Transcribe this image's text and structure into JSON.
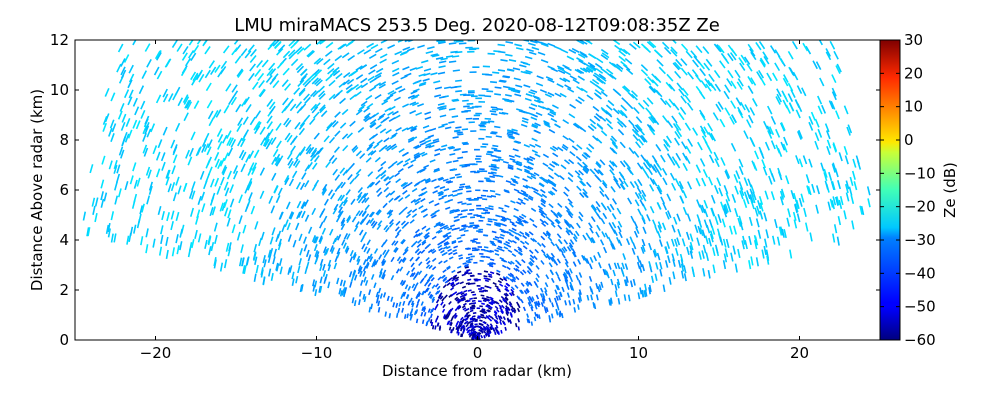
{
  "chart_data": {
    "type": "heatmap",
    "subtype": "radar RHI scan",
    "title": "LMU miraMACS 253.5 Deg. 2020-08-12T09:08:35Z  Ze",
    "xlabel": "Distance from radar (km)",
    "ylabel": "Distance Above radar  (km)",
    "xlim": [
      -25,
      25
    ],
    "ylim": [
      0,
      12
    ],
    "xticks": [
      "−20",
      "−10",
      "0",
      "10",
      "20"
    ],
    "xtick_values": [
      -20,
      -10,
      0,
      10,
      20
    ],
    "yticks": [
      "0",
      "2",
      "4",
      "6",
      "8",
      "10",
      "12"
    ],
    "ytick_values": [
      0,
      2,
      4,
      6,
      8,
      10,
      12
    ],
    "colorbar": {
      "label": "Ze (dB)",
      "range": [
        -60,
        30
      ],
      "ticks": [
        "−60",
        "−50",
        "−40",
        "−30",
        "−20",
        "−10",
        "0",
        "10",
        "20",
        "30"
      ],
      "tick_values": [
        -60,
        -50,
        -40,
        -30,
        -20,
        -10,
        0,
        10,
        20,
        30
      ],
      "colormap": "jet"
    },
    "scan": {
      "elevation_deg_min": 10,
      "elevation_deg_max": 170,
      "max_range_km": 25,
      "grid": false
    },
    "field": {
      "description": "sparse noise-level Ze values",
      "near_radar_ze_db": -55,
      "mid_range_ze_db": -42,
      "far_range_ze_db": -30
    }
  }
}
